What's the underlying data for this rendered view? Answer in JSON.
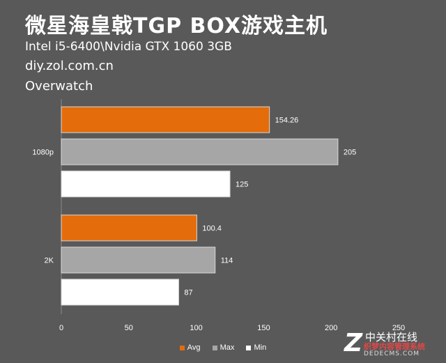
{
  "header": {
    "title": "微星海皇戟TGP BOX游戏主机",
    "line1": "Intel i5-6400\\Nvidia GTX 1060 3GB",
    "line2": "diy.zol.com.cn",
    "line3": "Overwatch"
  },
  "chart_data": {
    "type": "bar",
    "orientation": "horizontal",
    "categories": [
      "1080p",
      "2K"
    ],
    "series": [
      {
        "name": "Avg",
        "color": "#e46c0a",
        "values": [
          154.26,
          100.4
        ]
      },
      {
        "name": "Max",
        "color": "#a6a6a6",
        "values": [
          205,
          114
        ]
      },
      {
        "name": "Min",
        "color": "#ffffff",
        "values": [
          125,
          87
        ]
      }
    ],
    "value_labels": [
      [
        "154.26",
        "100.4"
      ],
      [
        "205",
        "114"
      ],
      [
        "125",
        "87"
      ]
    ],
    "xlim": [
      0,
      250
    ],
    "xticks": [
      0,
      50,
      100,
      150,
      200,
      250
    ],
    "legend_position": "bottom",
    "grid": false
  },
  "legend": [
    {
      "label": "Avg",
      "color": "#e46c0a"
    },
    {
      "label": "Max",
      "color": "#a6a6a6"
    },
    {
      "label": "Min",
      "color": "#ffffff"
    }
  ],
  "watermark": {
    "logo": "Z",
    "text1": "中关村在线",
    "text2": "织梦内容管理系统",
    "text3": "DEDECMS.COM"
  }
}
